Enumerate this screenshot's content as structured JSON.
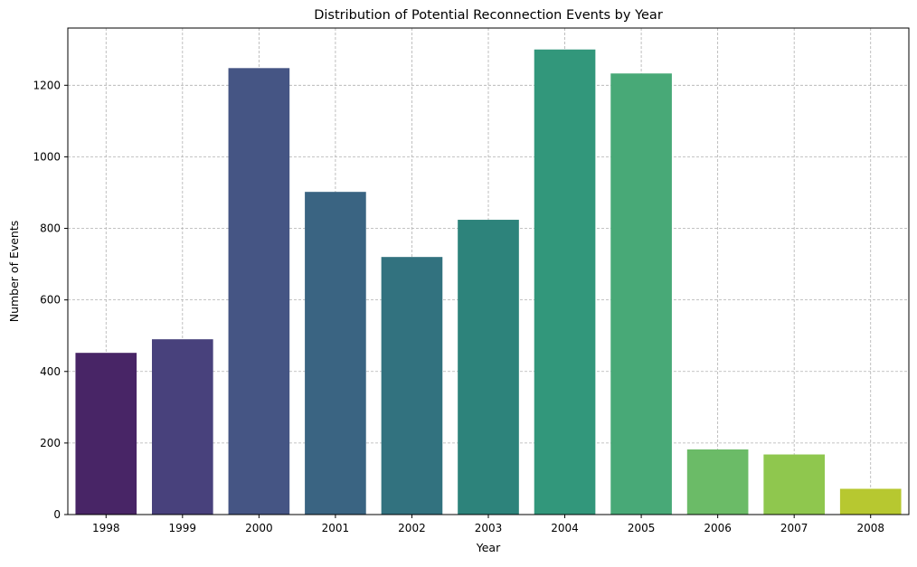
{
  "chart_data": {
    "type": "bar",
    "title": "Distribution of Potential Reconnection Events by Year",
    "xlabel": "Year",
    "ylabel": "Number of Events",
    "categories": [
      "1998",
      "1999",
      "2000",
      "2001",
      "2002",
      "2003",
      "2004",
      "2005",
      "2006",
      "2007",
      "2008"
    ],
    "values": [
      452,
      490,
      1248,
      902,
      720,
      824,
      1300,
      1233,
      182,
      168,
      72
    ],
    "ylim": [
      0,
      1360
    ],
    "yticks": [
      0,
      200,
      400,
      600,
      800,
      1000,
      1200
    ],
    "grid": true,
    "legend": "none",
    "colormap": "viridis",
    "colors": [
      "#482566",
      "#48417c",
      "#455584",
      "#3a6482",
      "#32727f",
      "#2d837b",
      "#32977b",
      "#48a977",
      "#6bbb67",
      "#8fc74e",
      "#b7c830"
    ]
  }
}
